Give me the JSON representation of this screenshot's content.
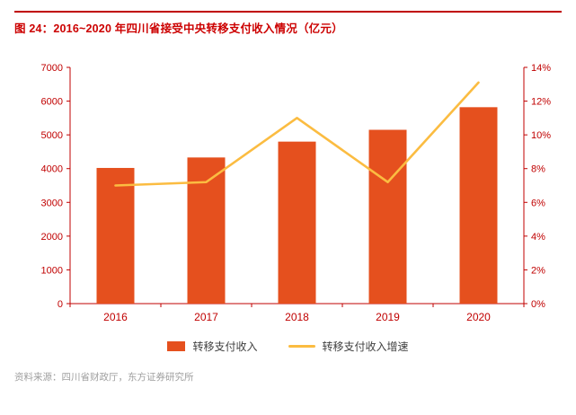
{
  "header": {
    "title": "图 24：2016~2020 年四川省接受中央转移支付收入情况（亿元）"
  },
  "chart_data": {
    "type": "combo",
    "title": "2016~2020 年四川省接受中央转移支付收入情况（亿元）",
    "categories": [
      "2016",
      "2017",
      "2018",
      "2019",
      "2020"
    ],
    "series": [
      {
        "name": "转移支付收入",
        "type": "bar",
        "axis": "left",
        "values": [
          4020,
          4330,
          4800,
          5150,
          5820
        ],
        "color": "#E5501E"
      },
      {
        "name": "转移支付收入增速",
        "type": "line",
        "axis": "right",
        "values": [
          7.0,
          7.2,
          11.0,
          7.2,
          13.1
        ],
        "color": "#FBBC41"
      }
    ],
    "left_axis": {
      "min": 0,
      "max": 7000,
      "step": 1000,
      "tick_labels": [
        "0",
        "1000",
        "2000",
        "3000",
        "4000",
        "5000",
        "6000",
        "7000"
      ]
    },
    "right_axis": {
      "min": 0,
      "max": 14,
      "step": 2,
      "tick_labels": [
        "0%",
        "2%",
        "4%",
        "6%",
        "8%",
        "10%",
        "12%",
        "14%"
      ]
    },
    "grid": false,
    "legend_position": "bottom"
  },
  "legend": {
    "bar_label": "转移支付收入",
    "line_label": "转移支付收入增速"
  },
  "footer": {
    "source": "资料来源：四川省财政厅，东方证券研究所"
  },
  "colors": {
    "accent_red": "#C00000",
    "title_red": "#CC0000",
    "axis": "#C00000",
    "bar": "#E5501E",
    "line": "#FBBC41",
    "legend_text": "#404040",
    "source_text": "#A0A0A0"
  }
}
